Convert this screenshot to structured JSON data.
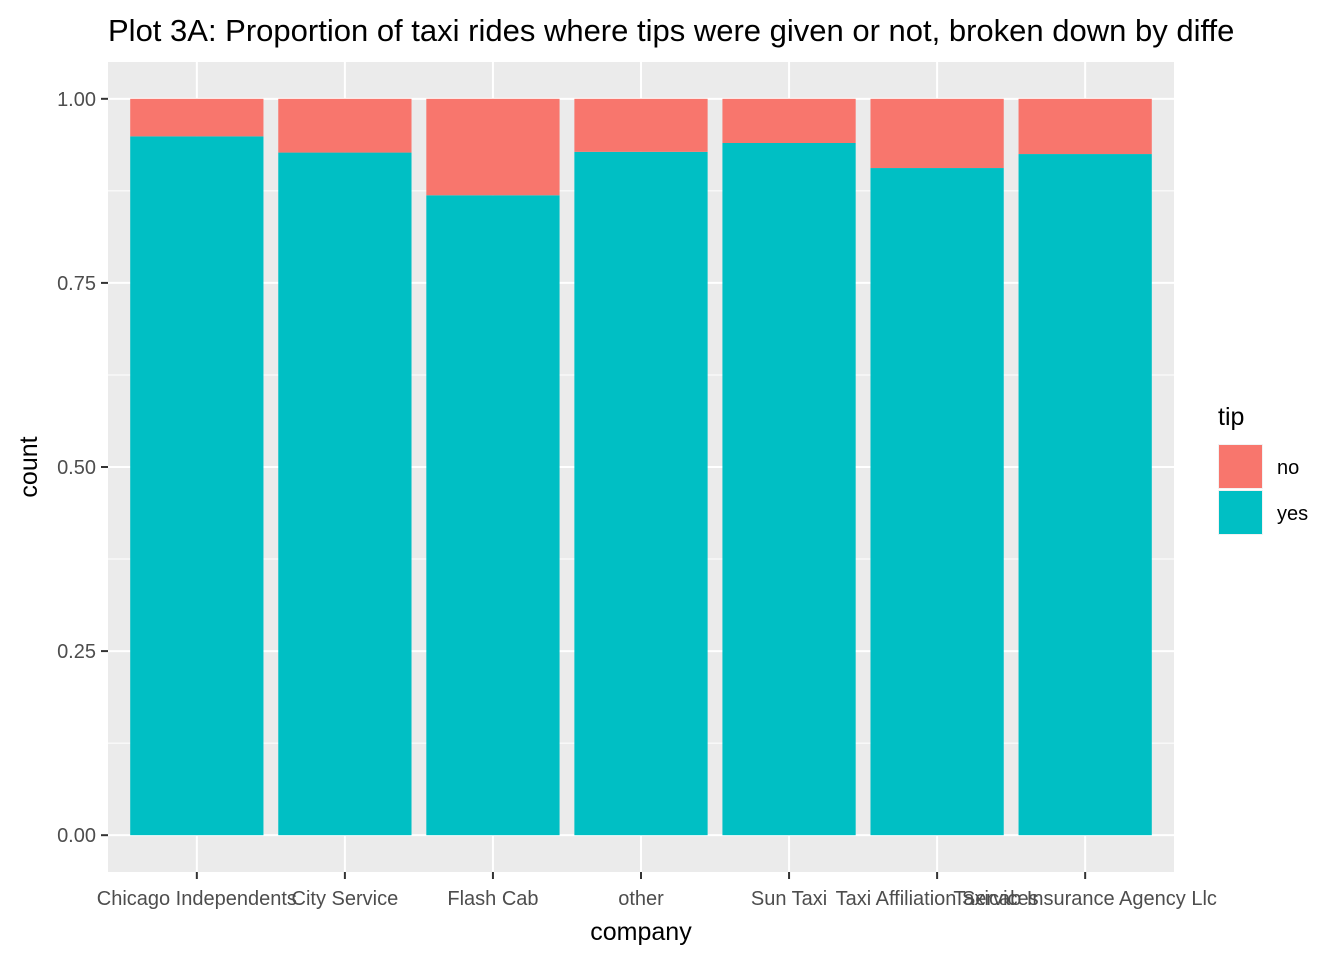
{
  "chart_data": {
    "type": "bar",
    "stacked": true,
    "title": "Plot 3A: Proportion of taxi rides where tips were given or not, broken down by diffe",
    "xlabel": "company",
    "ylabel": "count",
    "ylim": [
      -0.05,
      1.05
    ],
    "yticks": [
      0.0,
      0.25,
      0.5,
      0.75,
      1.0
    ],
    "ytick_labels": [
      "0.00",
      "0.25",
      "0.50",
      "0.75",
      "1.00"
    ],
    "categories": [
      "Chicago Independents",
      "City Service",
      "Flash Cab",
      "other",
      "Sun Taxi",
      "Taxi Affiliation Services",
      "Taxicab Insurance Agency Llc"
    ],
    "series": [
      {
        "name": "no",
        "color": "#F8766D",
        "values": [
          0.051,
          0.073,
          0.131,
          0.072,
          0.06,
          0.094,
          0.075
        ]
      },
      {
        "name": "yes",
        "color": "#00BFC4",
        "values": [
          0.949,
          0.927,
          0.869,
          0.928,
          0.94,
          0.906,
          0.925
        ]
      }
    ],
    "legend": {
      "title": "tip",
      "position": "right"
    },
    "grid": true,
    "panel_background": "#EBEBEB"
  }
}
